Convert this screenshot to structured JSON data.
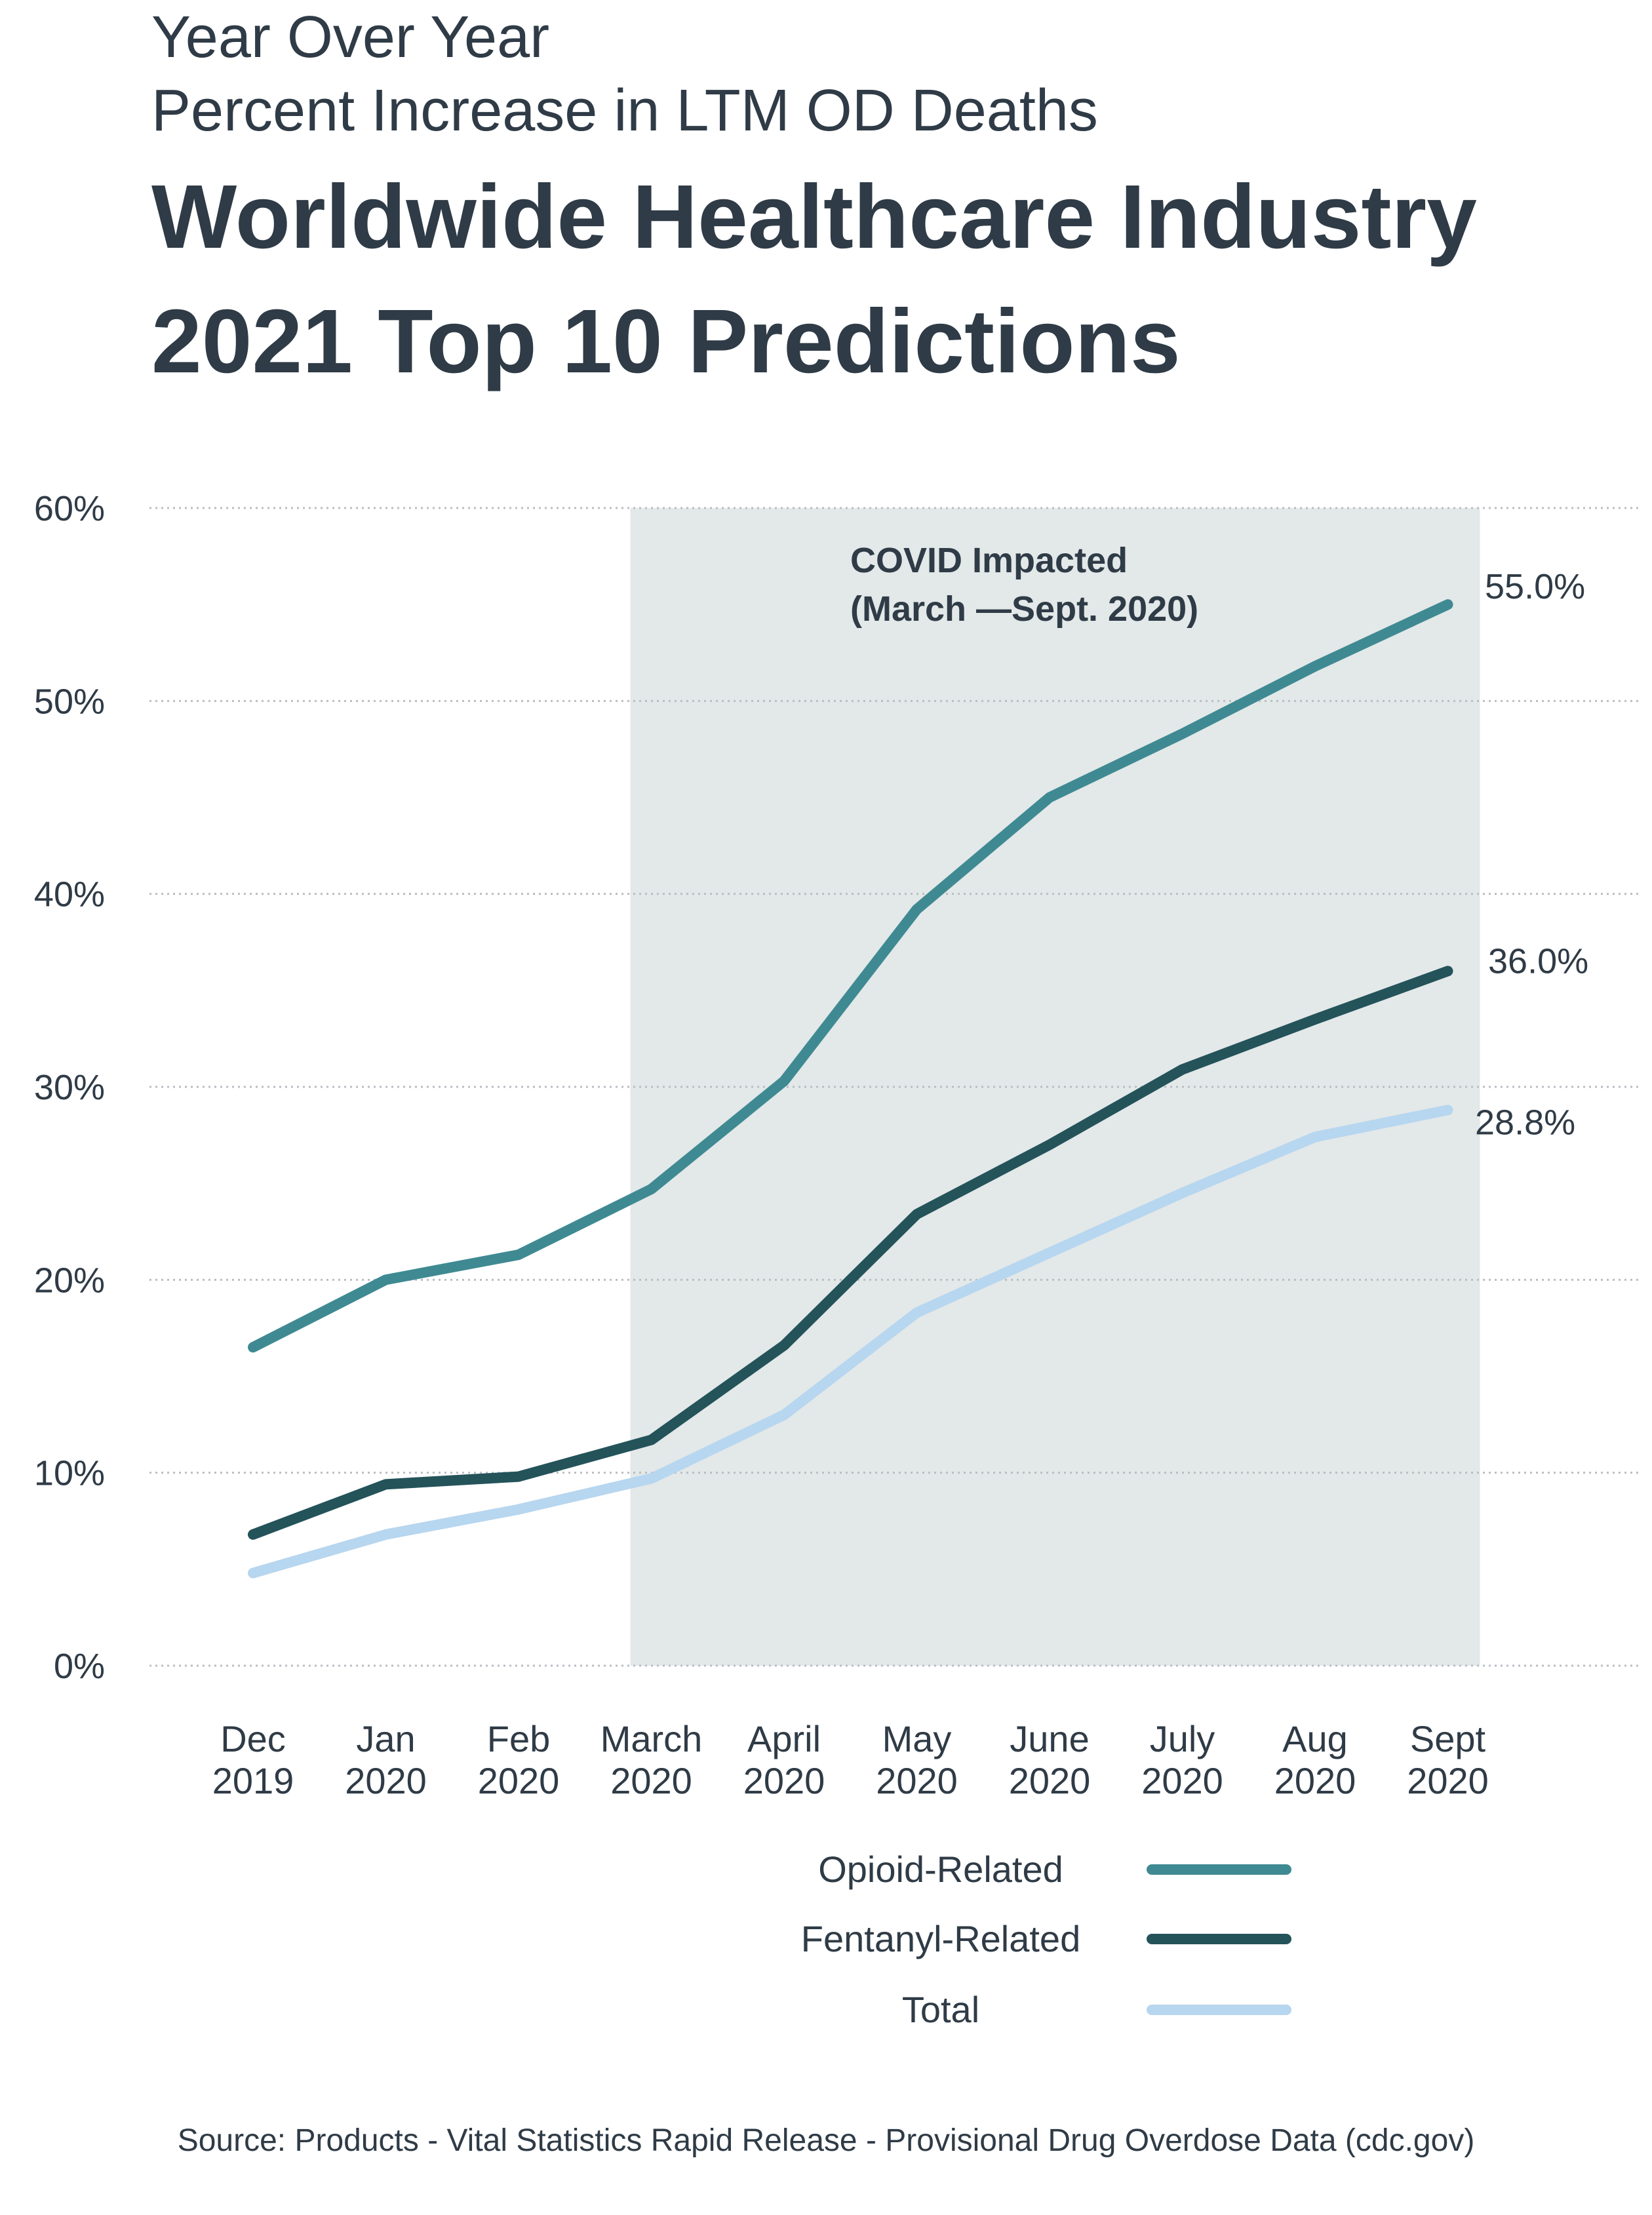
{
  "header": {
    "subtitle_line1": "Year Over Year",
    "subtitle_line2": "Percent Increase in LTM OD Deaths",
    "title_line1": "Worldwide Healthcare Industry",
    "title_line2": "2021 Top 10 Predictions"
  },
  "chart_data": {
    "type": "line",
    "categories": [
      [
        "Dec",
        "2019"
      ],
      [
        "Jan",
        "2020"
      ],
      [
        "Feb",
        "2020"
      ],
      [
        "March",
        "2020"
      ],
      [
        "April",
        "2020"
      ],
      [
        "May",
        "2020"
      ],
      [
        "June",
        "2020"
      ],
      [
        "July",
        "2020"
      ],
      [
        "Aug",
        "2020"
      ],
      [
        "Sept",
        "2020"
      ]
    ],
    "ylim": [
      0,
      60
    ],
    "yticks": [
      "0%",
      "10%",
      "20%",
      "30%",
      "40%",
      "50%",
      "60%"
    ],
    "grid": true,
    "highlight": {
      "label_line1": "COVID Impacted",
      "label_line2": "(March —Sept. 2020)",
      "from_category": 3,
      "to_category": 9
    },
    "series": [
      {
        "name": "Opioid-Related",
        "color": "#3f8a92",
        "values": [
          16.5,
          20.0,
          21.3,
          24.7,
          30.3,
          39.2,
          45.0,
          48.3,
          51.8,
          55.0
        ],
        "end_label": "55.0%"
      },
      {
        "name": "Fentanyl-Related",
        "color": "#24535a",
        "values": [
          6.8,
          9.4,
          9.8,
          11.7,
          16.6,
          23.4,
          27.0,
          30.9,
          33.5,
          36.0
        ],
        "end_label": "36.0%"
      },
      {
        "name": "Total",
        "color": "#b7d6ef",
        "values": [
          4.8,
          6.8,
          8.1,
          9.7,
          13.0,
          18.3,
          21.4,
          24.5,
          27.4,
          28.8
        ],
        "end_label": "28.8%"
      }
    ],
    "legend_position": "bottom"
  },
  "source": "Source: Products - Vital Statistics Rapid Release - Provisional Drug Overdose Data (cdc.gov)"
}
